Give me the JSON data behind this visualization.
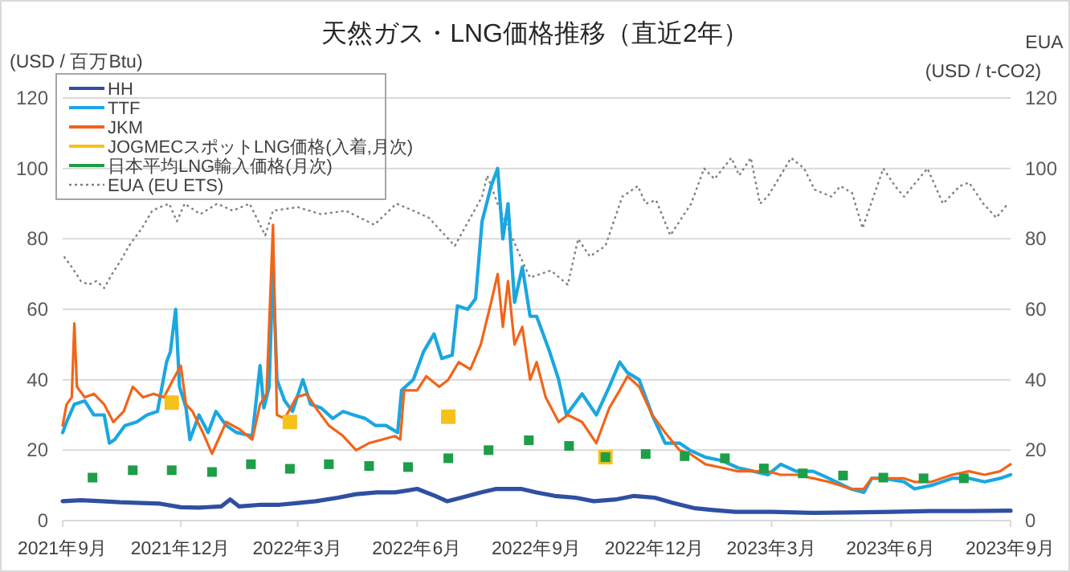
{
  "chart_data": {
    "type": "line",
    "title": "天然ガス・LNG価格推移（直近2年）",
    "ylabel": "(USD / 百万Btu)",
    "y2label": "EUA (USD / t-CO2)",
    "xlim": [
      "2021-09-01",
      "2023-09-01"
    ],
    "xticks": [
      {
        "value": "2021-09-01",
        "label": "2021年9月"
      },
      {
        "value": "2021-12-01",
        "label": "2021年12月"
      },
      {
        "value": "2022-03-01",
        "label": "2022年3月"
      },
      {
        "value": "2022-06-01",
        "label": "2022年6月"
      },
      {
        "value": "2022-09-01",
        "label": "2022年9月"
      },
      {
        "value": "2022-12-01",
        "label": "2022年12月"
      },
      {
        "value": "2023-03-01",
        "label": "2023年3月"
      },
      {
        "value": "2023-06-01",
        "label": "2023年6月"
      },
      {
        "value": "2023-09-01",
        "label": "2023年9月"
      }
    ],
    "ylim": [
      0,
      120
    ],
    "yticks": [
      0,
      20,
      40,
      60,
      80,
      100,
      120
    ],
    "y2lim": [
      0,
      120
    ],
    "y2ticks": [
      0,
      20,
      40,
      60,
      80,
      100,
      120
    ],
    "grid": "y",
    "legend": "top left",
    "series": [
      {
        "name": "HH",
        "color": "#2f4fa2",
        "x": [
          "2021-09-01",
          "2021-09-15",
          "2021-10-01",
          "2021-10-15",
          "2021-11-01",
          "2021-11-15",
          "2021-12-01",
          "2021-12-15",
          "2022-01-01",
          "2022-01-08",
          "2022-01-15",
          "2022-02-01",
          "2022-02-15",
          "2022-03-01",
          "2022-03-15",
          "2022-04-01",
          "2022-04-15",
          "2022-05-01",
          "2022-05-15",
          "2022-06-01",
          "2022-06-15",
          "2022-06-24",
          "2022-07-05",
          "2022-07-20",
          "2022-08-01",
          "2022-08-20",
          "2022-09-01",
          "2022-09-15",
          "2022-10-01",
          "2022-10-15",
          "2022-11-01",
          "2022-11-15",
          "2022-12-01",
          "2022-12-15",
          "2023-01-01",
          "2023-01-15",
          "2023-02-01",
          "2023-03-01",
          "2023-04-01",
          "2023-05-01",
          "2023-06-01",
          "2023-07-01",
          "2023-08-01",
          "2023-09-01"
        ],
        "values": [
          5.5,
          5.8,
          5.5,
          5.2,
          5,
          4.8,
          3.8,
          3.7,
          4,
          6,
          4,
          4.5,
          4.5,
          5,
          5.5,
          6.5,
          7.5,
          8,
          8,
          9,
          7,
          5.5,
          6.5,
          8,
          9,
          9,
          8,
          7,
          6.5,
          5.5,
          6,
          7,
          6.5,
          5,
          3.5,
          3,
          2.5,
          2.5,
          2.2,
          2.3,
          2.5,
          2.7,
          2.7,
          2.8
        ]
      },
      {
        "name": "TTF",
        "color": "#1aa7e0",
        "x": [
          "2021-09-01",
          "2021-09-04",
          "2021-09-10",
          "2021-09-18",
          "2021-09-25",
          "2021-10-03",
          "2021-10-07",
          "2021-10-11",
          "2021-10-19",
          "2021-10-28",
          "2021-11-05",
          "2021-11-13",
          "2021-11-20",
          "2021-11-23",
          "2021-11-27",
          "2021-11-30",
          "2021-12-05",
          "2021-12-08",
          "2021-12-15",
          "2021-12-22",
          "2021-12-28",
          "2022-01-05",
          "2022-01-13",
          "2022-01-25",
          "2022-01-31",
          "2022-02-03",
          "2022-02-07",
          "2022-02-10",
          "2022-02-13",
          "2022-02-19",
          "2022-02-25",
          "2022-03-05",
          "2022-03-11",
          "2022-03-19",
          "2022-03-28",
          "2022-04-05",
          "2022-04-13",
          "2022-04-22",
          "2022-04-30",
          "2022-05-08",
          "2022-05-17",
          "2022-05-20",
          "2022-05-29",
          "2022-06-06",
          "2022-06-14",
          "2022-06-20",
          "2022-06-28",
          "2022-07-02",
          "2022-07-10",
          "2022-07-16",
          "2022-07-21",
          "2022-07-28",
          "2022-08-02",
          "2022-08-06",
          "2022-08-10",
          "2022-08-15",
          "2022-08-21",
          "2022-08-27",
          "2022-09-01",
          "2022-09-11",
          "2022-09-18",
          "2022-09-24",
          "2022-10-06",
          "2022-10-17",
          "2022-10-27",
          "2022-11-04",
          "2022-11-10",
          "2022-11-19",
          "2022-11-29",
          "2022-12-09",
          "2022-12-20",
          "2022-12-28",
          "2023-01-09",
          "2023-01-22",
          "2023-02-03",
          "2023-02-15",
          "2023-02-26",
          "2023-03-08",
          "2023-03-20",
          "2023-04-02",
          "2023-04-14",
          "2023-05-01",
          "2023-05-11",
          "2023-05-17",
          "2023-05-26",
          "2023-06-11",
          "2023-06-19",
          "2023-07-02",
          "2023-07-18",
          "2023-07-31",
          "2023-08-12",
          "2023-08-24",
          "2023-09-01"
        ],
        "values": [
          25,
          28,
          33,
          34,
          30,
          30,
          22,
          23,
          27,
          28,
          30,
          31,
          45,
          48,
          60,
          38,
          32,
          23,
          30,
          25,
          31,
          27,
          25,
          24,
          44,
          32,
          38,
          72,
          40,
          34,
          31,
          40,
          33,
          32,
          29,
          31,
          30,
          29,
          27,
          27,
          25,
          37,
          40,
          48,
          53,
          46,
          47,
          61,
          60,
          63,
          85,
          95,
          100,
          80,
          90,
          62,
          72,
          58,
          58,
          48,
          40,
          30,
          36,
          30,
          38,
          45,
          42,
          40,
          30,
          22,
          22,
          20,
          18,
          17,
          15,
          14,
          13,
          16,
          14,
          14,
          12,
          9,
          8,
          12,
          12,
          11,
          9,
          10,
          12,
          12,
          11,
          12,
          13
        ]
      },
      {
        "name": "JKM",
        "color": "#f26419",
        "x": [
          "2021-09-01",
          "2021-09-04",
          "2021-09-08",
          "2021-09-10",
          "2021-09-12",
          "2021-09-18",
          "2021-09-25",
          "2021-10-03",
          "2021-10-10",
          "2021-10-18",
          "2021-10-25",
          "2021-11-02",
          "2021-11-10",
          "2021-11-18",
          "2021-11-25",
          "2021-12-01",
          "2021-12-05",
          "2021-12-10",
          "2021-12-18",
          "2021-12-25",
          "2022-01-05",
          "2022-01-15",
          "2022-01-25",
          "2022-01-31",
          "2022-02-05",
          "2022-02-10",
          "2022-02-13",
          "2022-02-19",
          "2022-02-28",
          "2022-03-08",
          "2022-03-15",
          "2022-03-25",
          "2022-04-05",
          "2022-04-15",
          "2022-04-25",
          "2022-05-05",
          "2022-05-15",
          "2022-05-19",
          "2022-05-22",
          "2022-06-01",
          "2022-06-08",
          "2022-06-18",
          "2022-06-25",
          "2022-07-03",
          "2022-07-12",
          "2022-07-20",
          "2022-07-28",
          "2022-08-02",
          "2022-08-06",
          "2022-08-10",
          "2022-08-15",
          "2022-08-21",
          "2022-08-27",
          "2022-09-01",
          "2022-09-08",
          "2022-09-18",
          "2022-09-25",
          "2022-10-06",
          "2022-10-17",
          "2022-10-27",
          "2022-11-04",
          "2022-11-10",
          "2022-11-19",
          "2022-11-29",
          "2022-12-09",
          "2022-12-20",
          "2022-12-28",
          "2023-01-09",
          "2023-01-22",
          "2023-02-03",
          "2023-02-15",
          "2023-02-26",
          "2023-03-08",
          "2023-03-20",
          "2023-04-02",
          "2023-04-14",
          "2023-05-01",
          "2023-05-11",
          "2023-05-17",
          "2023-05-26",
          "2023-06-11",
          "2023-06-19",
          "2023-07-02",
          "2023-07-18",
          "2023-07-31",
          "2023-08-12",
          "2023-08-24",
          "2023-09-01"
        ],
        "values": [
          27,
          33,
          35,
          56,
          38,
          35,
          36,
          33,
          28,
          31,
          38,
          35,
          36,
          35,
          40,
          44,
          33,
          31,
          25,
          19,
          28,
          26,
          23,
          33,
          36,
          84,
          30,
          29,
          35,
          36,
          32,
          27,
          24,
          20,
          22,
          23,
          24,
          23,
          37,
          37,
          41,
          38,
          40,
          45,
          43,
          50,
          62,
          70,
          55,
          68,
          50,
          55,
          40,
          45,
          35,
          28,
          30,
          28,
          22,
          32,
          37,
          41,
          38,
          30,
          25,
          20,
          19,
          16,
          15,
          14,
          14,
          14,
          13,
          13,
          12,
          11,
          9,
          9,
          12,
          12,
          12,
          11,
          11,
          13,
          14,
          13,
          14,
          16
        ]
      },
      {
        "name": "JOGMECスポットLNG価格(入着,月次)",
        "color": "#f5c21b",
        "type": "scatter",
        "marker": "square",
        "x": [
          "2021-11-24",
          "2022-02-23",
          "2022-06-25",
          "2022-10-24"
        ],
        "values": [
          33.5,
          28,
          29.5,
          18
        ]
      },
      {
        "name": "日本平均LNG輸入価格(月次)",
        "color": "#1e9e48",
        "type": "scatter",
        "marker": "square",
        "x": [
          "2021-09-24",
          "2021-10-25",
          "2021-11-24",
          "2021-12-25",
          "2022-01-24",
          "2022-02-23",
          "2022-03-25",
          "2022-04-25",
          "2022-05-25",
          "2022-06-25",
          "2022-07-26",
          "2022-08-26",
          "2022-09-26",
          "2022-10-24",
          "2022-11-24",
          "2022-12-24",
          "2023-01-24",
          "2023-02-23",
          "2023-03-25",
          "2023-04-25",
          "2023-05-26",
          "2023-06-26",
          "2023-07-27"
        ],
        "values": [
          12.2,
          14.3,
          14.3,
          13.8,
          16,
          14.7,
          16,
          15.5,
          15.2,
          17.7,
          20,
          22.8,
          21.2,
          18,
          18.9,
          18.3,
          17.7,
          14.8,
          13.4,
          12.8,
          12.2,
          12,
          12
        ]
      },
      {
        "name": "EUA (EU ETS)",
        "color": "#808080",
        "axis": "y2",
        "line_style": "dotted",
        "x": [
          "2021-09-02",
          "2021-09-08",
          "2021-09-15",
          "2021-09-21",
          "2021-09-27",
          "2021-10-03",
          "2021-10-09",
          "2021-10-16",
          "2021-10-22",
          "2021-11-01",
          "2021-11-09",
          "2021-11-15",
          "2021-11-22",
          "2021-11-28",
          "2021-12-04",
          "2021-12-16",
          "2021-12-29",
          "2022-01-10",
          "2022-01-23",
          "2022-02-04",
          "2022-02-10",
          "2022-03-01",
          "2022-03-19",
          "2022-04-07",
          "2022-04-29",
          "2022-05-16",
          "2022-05-29",
          "2022-06-10",
          "2022-06-30",
          "2022-07-21",
          "2022-07-25",
          "2022-08-02",
          "2022-08-23",
          "2022-08-27",
          "2022-09-12",
          "2022-09-25",
          "2022-10-03",
          "2022-10-12",
          "2022-10-24",
          "2022-11-06",
          "2022-11-18",
          "2022-11-24",
          "2022-12-02",
          "2022-12-13",
          "2022-12-29",
          "2023-01-08",
          "2023-01-16",
          "2023-01-29",
          "2023-02-04",
          "2023-02-13",
          "2023-02-20",
          "2023-02-26",
          "2023-03-16",
          "2023-03-26",
          "2023-04-03",
          "2023-04-16",
          "2023-04-23",
          "2023-05-02",
          "2023-05-10",
          "2023-05-26",
          "2023-06-04",
          "2023-06-11",
          "2023-06-29",
          "2023-07-11",
          "2023-07-24",
          "2023-07-31",
          "2023-08-11",
          "2023-08-21",
          "2023-08-30"
        ],
        "values": [
          75,
          72,
          68,
          67,
          68,
          66,
          70,
          74,
          78,
          83,
          88,
          89,
          90,
          85,
          90,
          87,
          90,
          88,
          90,
          81,
          88,
          89,
          87,
          88,
          84,
          90,
          88,
          86,
          78,
          92,
          98,
          90,
          72,
          69,
          71,
          67,
          80,
          75,
          78,
          92,
          95,
          90,
          91,
          81,
          90,
          100,
          97,
          103,
          98,
          103,
          90,
          92,
          103,
          100,
          94,
          92,
          95,
          93,
          83,
          100,
          95,
          92,
          100,
          90,
          95,
          96,
          90,
          86,
          90
        ]
      }
    ]
  }
}
